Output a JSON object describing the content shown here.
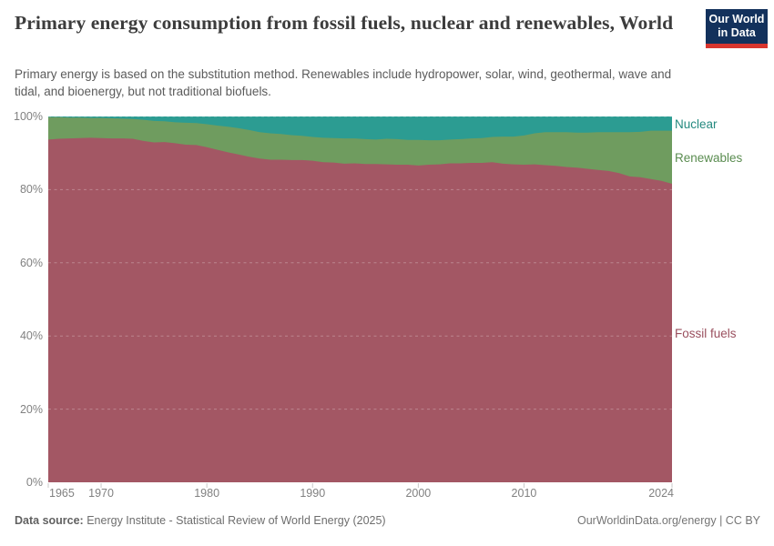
{
  "header": {
    "title": "Primary energy consumption from fossil fuels, nuclear and renewables, World",
    "subtitle_lines": [
      "Primary energy is based on the substitution method. Renewables include hydropower, solar, wind, geothermal, wave and",
      "tidal, and bioenergy, but not traditional biofuels."
    ],
    "logo": {
      "line1": "Our World",
      "line2": "in Data",
      "bg_color": "#13315c",
      "bar_color": "#d8352e"
    }
  },
  "chart_data": {
    "type": "area",
    "stacked": true,
    "unit": "%",
    "ylim": [
      0,
      100
    ],
    "xlim": [
      1965,
      2024
    ],
    "grid": "horizontal-dashed",
    "legend_position": "right",
    "x": [
      1965,
      1966,
      1967,
      1968,
      1969,
      1970,
      1971,
      1972,
      1973,
      1974,
      1975,
      1976,
      1977,
      1978,
      1979,
      1980,
      1981,
      1982,
      1983,
      1984,
      1985,
      1986,
      1987,
      1988,
      1989,
      1990,
      1991,
      1992,
      1993,
      1994,
      1995,
      1996,
      1997,
      1998,
      1999,
      2000,
      2001,
      2002,
      2003,
      2004,
      2005,
      2006,
      2007,
      2008,
      2009,
      2010,
      2011,
      2012,
      2013,
      2014,
      2015,
      2016,
      2017,
      2018,
      2019,
      2020,
      2021,
      2022,
      2023,
      2024
    ],
    "series": [
      {
        "name": "Fossil fuels",
        "color": "#a35764",
        "label_color": "#9a4f5e",
        "values": [
          93.7,
          93.9,
          94.0,
          94.1,
          94.2,
          94.1,
          94.0,
          94.0,
          93.9,
          93.3,
          92.9,
          93.0,
          92.7,
          92.3,
          92.2,
          91.6,
          90.9,
          90.2,
          89.6,
          89.0,
          88.5,
          88.2,
          88.2,
          88.1,
          88.1,
          87.9,
          87.5,
          87.4,
          87.1,
          87.2,
          87.0,
          87.0,
          86.9,
          86.8,
          86.8,
          86.6,
          86.8,
          86.9,
          87.2,
          87.2,
          87.3,
          87.3,
          87.5,
          87.1,
          86.9,
          86.8,
          86.9,
          86.7,
          86.5,
          86.2,
          86.0,
          85.7,
          85.4,
          85.1,
          84.5,
          83.6,
          83.4,
          82.9,
          82.4,
          81.6
        ]
      },
      {
        "name": "Renewables",
        "color": "#6f9c5f",
        "label_color": "#5a8c50",
        "values": [
          6.1,
          5.9,
          5.7,
          5.6,
          5.4,
          5.5,
          5.5,
          5.4,
          5.4,
          5.8,
          5.9,
          5.7,
          5.7,
          6.0,
          6.0,
          6.3,
          6.6,
          7.0,
          7.2,
          7.3,
          7.2,
          7.2,
          7.0,
          6.8,
          6.6,
          6.5,
          6.7,
          6.7,
          6.9,
          6.8,
          6.8,
          6.7,
          7.0,
          7.0,
          6.8,
          7.0,
          6.7,
          6.6,
          6.5,
          6.6,
          6.7,
          6.8,
          6.9,
          7.4,
          7.6,
          8.0,
          8.5,
          9.0,
          9.2,
          9.5,
          9.6,
          9.9,
          10.3,
          10.6,
          11.2,
          12.1,
          12.4,
          13.2,
          13.7,
          14.5
        ]
      },
      {
        "name": "Nuclear",
        "color": "#2c9c92",
        "label_color": "#24897f",
        "values": [
          0.2,
          0.2,
          0.3,
          0.3,
          0.4,
          0.4,
          0.5,
          0.6,
          0.7,
          0.9,
          1.2,
          1.3,
          1.6,
          1.7,
          1.8,
          2.1,
          2.5,
          2.8,
          3.2,
          3.7,
          4.3,
          4.6,
          4.8,
          5.1,
          5.3,
          5.6,
          5.8,
          5.9,
          6.0,
          6.0,
          6.2,
          6.3,
          6.1,
          6.2,
          6.4,
          6.4,
          6.5,
          6.5,
          6.3,
          6.2,
          6.0,
          5.9,
          5.6,
          5.5,
          5.5,
          5.2,
          4.6,
          4.3,
          4.3,
          4.3,
          4.4,
          4.4,
          4.3,
          4.3,
          4.3,
          4.3,
          4.2,
          3.9,
          3.9,
          3.9
        ]
      }
    ],
    "y_ticks": [
      {
        "value": 0,
        "label": "0%"
      },
      {
        "value": 20,
        "label": "20%"
      },
      {
        "value": 40,
        "label": "40%"
      },
      {
        "value": 60,
        "label": "60%"
      },
      {
        "value": 80,
        "label": "80%"
      },
      {
        "value": 100,
        "label": "100%"
      }
    ],
    "x_ticks": [
      {
        "year": 1965,
        "label": "1965"
      },
      {
        "year": 1970,
        "label": "1970"
      },
      {
        "year": 1980,
        "label": "1980"
      },
      {
        "year": 1990,
        "label": "1990"
      },
      {
        "year": 2000,
        "label": "2000"
      },
      {
        "year": 2010,
        "label": "2010"
      },
      {
        "year": 2024,
        "label": "2024"
      }
    ]
  },
  "footer": {
    "source_label": "Data source:",
    "source_value": " Energy Institute - Statistical Review of World Energy (2025)",
    "right_text": "OurWorldinData.org/energy | CC BY"
  }
}
